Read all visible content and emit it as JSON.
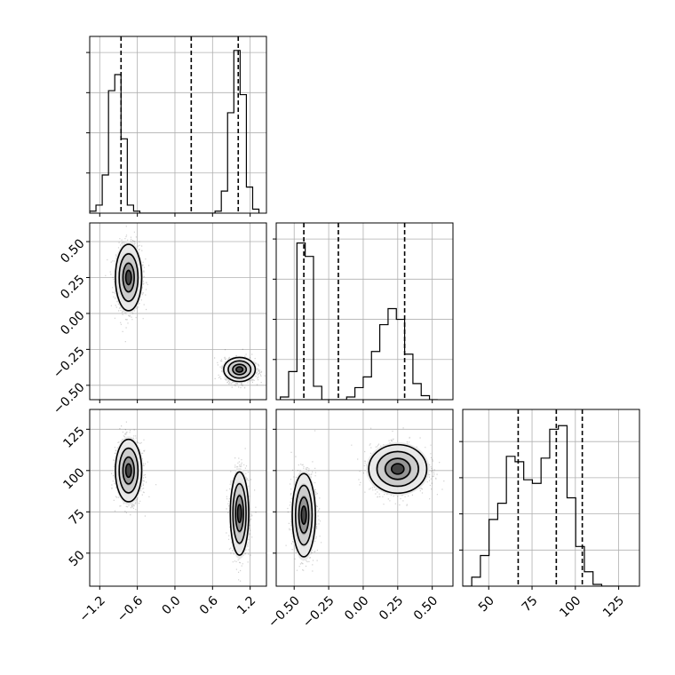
{
  "chart_data": [
    {
      "type": "histogram",
      "panel": "p0",
      "parameter_index": 0,
      "x": [
        -1.31,
        -1.21,
        -1.11,
        -1.01,
        -0.91,
        -0.81,
        -0.71,
        -0.61,
        -0.51,
        -0.41,
        -0.31,
        -0.21,
        -0.11,
        -0.01,
        0.09,
        0.19,
        0.29,
        0.39,
        0.49,
        0.59,
        0.69,
        0.79,
        0.89,
        0.99,
        1.09,
        1.19,
        1.29
      ],
      "values": [
        0.01,
        0.04,
        0.19,
        0.61,
        0.69,
        0.37,
        0.04,
        0.01,
        0.0,
        0.0,
        0.0,
        0.0,
        0.0,
        0.0,
        0.0,
        0.0,
        0.0,
        0.0,
        0.0,
        0.0,
        0.01,
        0.11,
        0.5,
        0.81,
        0.59,
        0.13,
        0.02
      ],
      "quantiles": [
        -0.86,
        0.26,
        1.01
      ],
      "xlim": [
        -1.36,
        1.46
      ],
      "ylim": [
        0,
        0.88
      ]
    },
    {
      "type": "scatter-density",
      "panel": "p10",
      "x_parameter": 0,
      "y_parameter": 1,
      "clusters": [
        {
          "center": [
            -0.74,
            0.25
          ],
          "spread": [
            0.1,
            0.11
          ]
        },
        {
          "center": [
            1.03,
            -0.39
          ],
          "spread": [
            0.12,
            0.04
          ]
        }
      ],
      "xlim": [
        -1.36,
        1.46
      ],
      "ylim": [
        -0.6,
        0.63
      ]
    },
    {
      "type": "histogram",
      "panel": "p11",
      "parameter_index": 1,
      "x": [
        -0.57,
        -0.51,
        -0.45,
        -0.39,
        -0.33,
        -0.27,
        -0.21,
        -0.15,
        -0.09,
        -0.03,
        0.03,
        0.09,
        0.15,
        0.21,
        0.27,
        0.33,
        0.39,
        0.45,
        0.51
      ],
      "values": [
        0.02,
        0.21,
        1.17,
        1.07,
        0.1,
        0.0,
        0.0,
        0.0,
        0.02,
        0.09,
        0.17,
        0.36,
        0.56,
        0.68,
        0.6,
        0.34,
        0.12,
        0.03,
        0.0
      ],
      "quantiles": [
        -0.43,
        -0.18,
        0.3
      ],
      "xlim": [
        -0.63,
        0.65
      ],
      "ylim": [
        0,
        1.32
      ]
    },
    {
      "type": "scatter-density",
      "panel": "p20",
      "x_parameter": 0,
      "y_parameter": 2,
      "clusters": [
        {
          "center": [
            -0.74,
            100
          ],
          "spread": [
            0.1,
            9
          ]
        },
        {
          "center": [
            1.03,
            74
          ],
          "spread": [
            0.07,
            12
          ]
        }
      ],
      "xlim": [
        -1.36,
        1.46
      ],
      "ylim": [
        30,
        137
      ]
    },
    {
      "type": "scatter-density",
      "panel": "p21",
      "x_parameter": 1,
      "y_parameter": 2,
      "clusters": [
        {
          "center": [
            -0.43,
            73
          ],
          "spread": [
            0.04,
            12
          ]
        },
        {
          "center": [
            0.25,
            101
          ],
          "spread": [
            0.1,
            7
          ]
        }
      ],
      "xlim": [
        -0.63,
        0.65
      ],
      "ylim": [
        30,
        137
      ]
    },
    {
      "type": "histogram",
      "panel": "p22",
      "parameter_index": 2,
      "x": [
        37.7,
        42.7,
        47.7,
        52.7,
        57.7,
        62.7,
        67.7,
        72.7,
        77.7,
        82.7,
        87.7,
        92.7,
        97.7,
        102.7,
        107.7,
        112.7,
        117.7,
        122.7,
        127.7,
        132.7
      ],
      "values": [
        0.0,
        0.05,
        0.17,
        0.37,
        0.46,
        0.72,
        0.69,
        0.59,
        0.57,
        0.71,
        0.87,
        0.89,
        0.49,
        0.22,
        0.08,
        0.01,
        0.0,
        0.0,
        0.0,
        0.0
      ],
      "quantiles": [
        67,
        89,
        104
      ],
      "xlim": [
        35,
        137
      ],
      "ylim": [
        0,
        0.98
      ]
    }
  ],
  "ticks": {
    "p0_x": [
      -1.2,
      -0.6,
      0.0,
      0.6,
      1.2
    ],
    "p1_y": [
      0.5,
      0.25,
      0.0,
      -0.25,
      -0.5
    ],
    "p1_x": [
      -0.5,
      -0.25,
      0.0,
      0.25,
      0.5
    ],
    "p2_y": [
      125,
      100,
      75,
      50
    ],
    "p2_x": [
      50,
      75,
      100,
      125
    ]
  },
  "axis_labels": {
    "row1_y": [
      "0.50",
      "0.25",
      "0.00",
      "−0.25",
      "−0.50"
    ],
    "row2_y": [
      "125",
      "100",
      "75",
      "50"
    ],
    "col0_x": [
      "−1.2",
      "−0.6",
      "0.0",
      "0.6",
      "1.2"
    ],
    "col1_x": [
      "−0.50",
      "−0.25",
      "0.00",
      "0.25",
      "0.50"
    ],
    "col2_x": [
      "50",
      "75",
      "100",
      "125"
    ]
  },
  "colors": {
    "scatter": "#2b2b2b",
    "contour": "#000000",
    "histogram": "#000000",
    "grid": "#b0b0b0",
    "quantile": "#000000"
  }
}
